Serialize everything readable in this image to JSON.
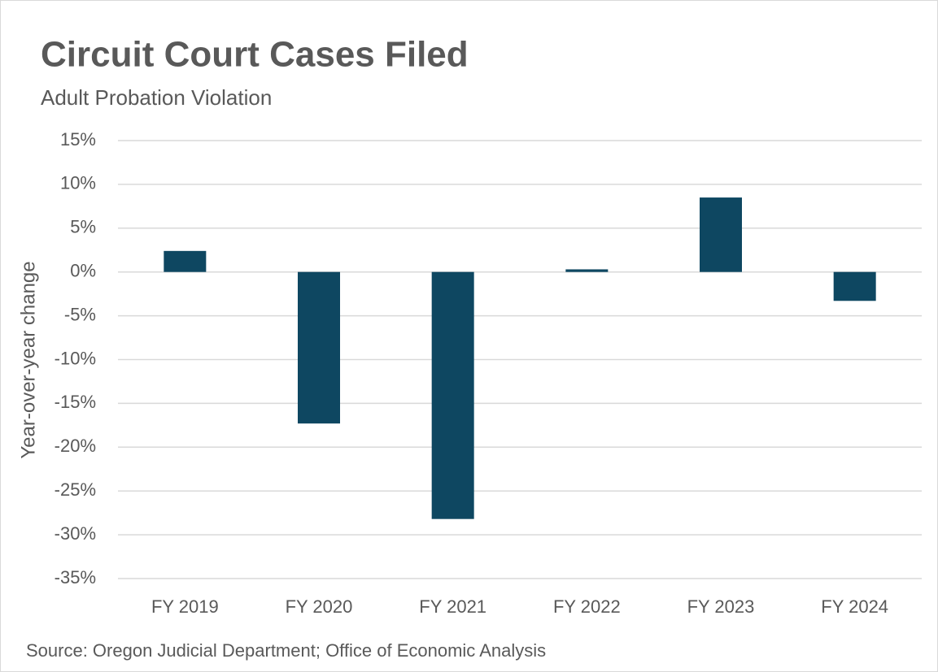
{
  "chart_data": {
    "type": "bar",
    "title": "Circuit Court Cases Filed",
    "subtitle": "Adult Probation Violation",
    "y_label": "Year-over-year change",
    "source": "Source: Oregon Judicial Department; Office of Economic Analysis",
    "categories": [
      "FY 2019",
      "FY 2020",
      "FY 2021",
      "FY 2022",
      "FY 2023",
      "FY 2024"
    ],
    "values": [
      2.4,
      -17.3,
      -28.2,
      0.3,
      8.5,
      -3.3
    ],
    "color": "#0e4761",
    "ylim": [
      -35,
      15
    ],
    "yticks": [
      {
        "value": 15,
        "label": "15%"
      },
      {
        "value": 10,
        "label": "10%"
      },
      {
        "value": 5,
        "label": "5%"
      },
      {
        "value": 0,
        "label": "0%"
      },
      {
        "value": -5,
        "label": "-5%"
      },
      {
        "value": -10,
        "label": "-10%"
      },
      {
        "value": -15,
        "label": "-15%"
      },
      {
        "value": -20,
        "label": "-20%"
      },
      {
        "value": -25,
        "label": "-25%"
      },
      {
        "value": -30,
        "label": "-30%"
      },
      {
        "value": -35,
        "label": "-35%"
      }
    ],
    "grid": true
  }
}
